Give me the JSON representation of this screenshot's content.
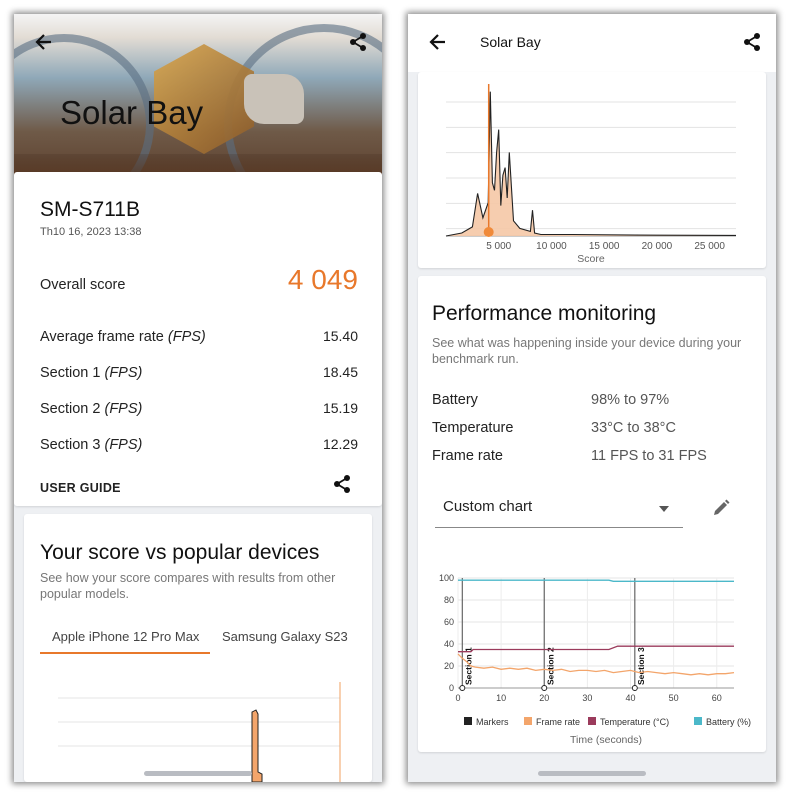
{
  "left": {
    "hero_title": "Solar Bay",
    "device": "SM-S711B",
    "datetime": "Th10 16, 2023 13:38",
    "overall": {
      "label": "Overall score",
      "value": "4 049"
    },
    "metrics": [
      {
        "label": "Average frame rate",
        "unit": "(FPS)",
        "value": "15.40"
      },
      {
        "label": "Section 1",
        "unit": "(FPS)",
        "value": "18.45"
      },
      {
        "label": "Section 2",
        "unit": "(FPS)",
        "value": "15.19"
      },
      {
        "label": "Section 3",
        "unit": "(FPS)",
        "value": "12.29"
      }
    ],
    "user_guide": "USER GUIDE",
    "compare": {
      "title": "Your score vs popular devices",
      "subtitle": "See how your score compares with results from other popular models.",
      "tabs": [
        {
          "label": "Apple iPhone 12 Pro Max",
          "active": true
        },
        {
          "label": "Samsung Galaxy S23",
          "active": false
        }
      ]
    }
  },
  "right": {
    "title": "Solar Bay",
    "chart_data": [
      {
        "type": "area",
        "xlabel": "Score",
        "x_ticks": [
          "5 000",
          "10 000",
          "15 000",
          "20 000",
          "25 000"
        ],
        "xlim": [
          0,
          27500
        ],
        "series": [
          {
            "x": [
              0,
              1500,
              2500,
              3000,
              3500,
              4000,
              4200,
              4400,
              4600,
              4800,
              5000,
              5200,
              5400,
              5600,
              5800,
              6000,
              6400,
              7000,
              8000,
              8200,
              8400,
              9000,
              12000,
              20000,
              27500
            ],
            "y": [
              0,
              0.02,
              0.06,
              0.28,
              0.12,
              0.22,
              0.95,
              0.35,
              0.3,
              0.55,
              0.7,
              0.2,
              0.4,
              0.45,
              0.25,
              0.55,
              0.1,
              0.05,
              0.03,
              0.17,
              0.02,
              0.01,
              0.01,
              0.005,
              0.004
            ]
          }
        ],
        "highlight_score": "4 049",
        "highlight_x": 4049
      },
      {
        "type": "line",
        "xlabel": "Time (seconds)",
        "xlim": [
          0,
          64
        ],
        "ylim": [
          0,
          100
        ],
        "x_ticks": [
          0,
          10,
          20,
          30,
          40,
          50,
          60
        ],
        "y_ticks": [
          0,
          20,
          40,
          60,
          80,
          100
        ],
        "markers": [
          {
            "label": "Section 1",
            "x": 1
          },
          {
            "label": "Section 2",
            "x": 20
          },
          {
            "label": "Section 3",
            "x": 41
          }
        ],
        "series": [
          {
            "name": "Markers",
            "color": "#222222",
            "x": [],
            "y": []
          },
          {
            "name": "Frame rate",
            "color": "#f3a56b",
            "x": [
              0,
              1,
              2,
              3,
              4,
              6,
              8,
              10,
              12,
              14,
              16,
              18,
              20,
              22,
              24,
              26,
              28,
              30,
              32,
              34,
              36,
              38,
              40,
              42,
              44,
              46,
              48,
              50,
              52,
              54,
              56,
              58,
              60,
              62,
              64
            ],
            "y": [
              31,
              27,
              24,
              20,
              19,
              18,
              19,
              17,
              18,
              17,
              18,
              16,
              17,
              16,
              17,
              15,
              16,
              16,
              15,
              16,
              14,
              15,
              16,
              14,
              15,
              14,
              13,
              14,
              13,
              12,
              13,
              12,
              13,
              13,
              14
            ]
          },
          {
            "name": "Temperature (°C)",
            "color": "#9b3b5c",
            "x": [
              0,
              3,
              3.5,
              35,
              37,
              64
            ],
            "y": [
              33,
              33,
              35,
              35,
              38,
              38
            ]
          },
          {
            "name": "Battery (%)",
            "color": "#4bb8c9",
            "x": [
              0,
              35,
              36,
              64
            ],
            "y": [
              98,
              98,
              97,
              97
            ]
          }
        ]
      }
    ],
    "perf": {
      "title": "Performance monitoring",
      "subtitle": "See what was happening inside your device during your benchmark run.",
      "rows": [
        {
          "label": "Battery",
          "value": "98% to 97%"
        },
        {
          "label": "Temperature",
          "value": "33°C to 38°C"
        },
        {
          "label": "Frame rate",
          "value": "11 FPS to 31 FPS"
        }
      ],
      "chart_select": "Custom chart"
    }
  },
  "colors": {
    "accent": "#e8782b"
  }
}
